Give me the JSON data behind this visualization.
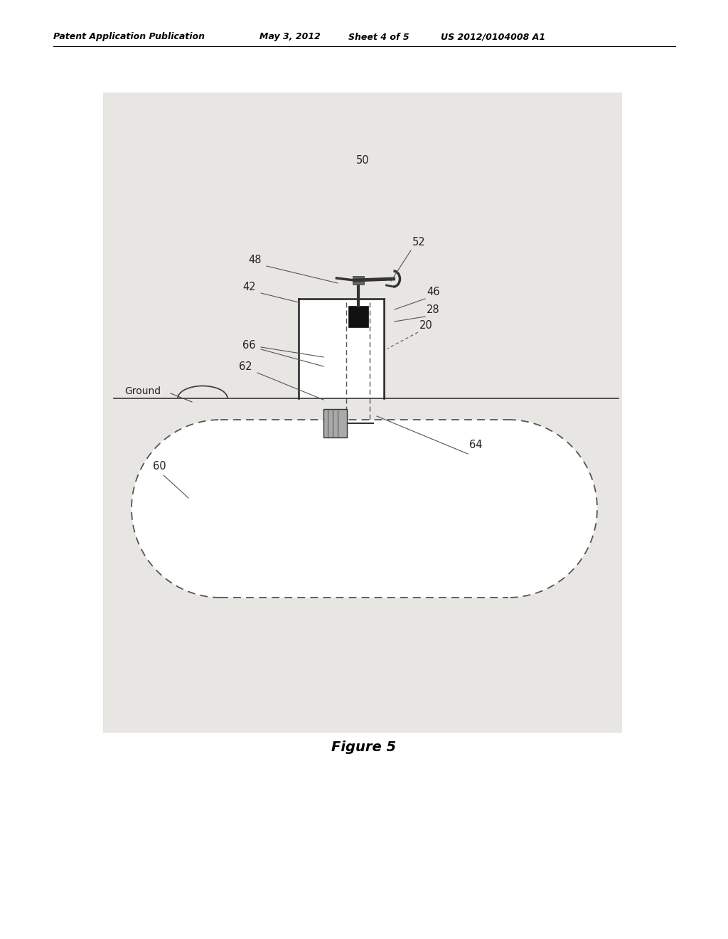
{
  "bg_color": "#ffffff",
  "diagram_bg": "#e8e6e2",
  "header_text": "Patent Application Publication",
  "header_date": "May 3, 2012",
  "header_sheet": "Sheet 4 of 5",
  "header_patent": "US 2012/0104008 A1",
  "figure_caption": "Figure 5",
  "line_color": "#444444",
  "label_color": "#222222",
  "tank_dash_color": "#555555",
  "pipe_dash_color": "#555555"
}
